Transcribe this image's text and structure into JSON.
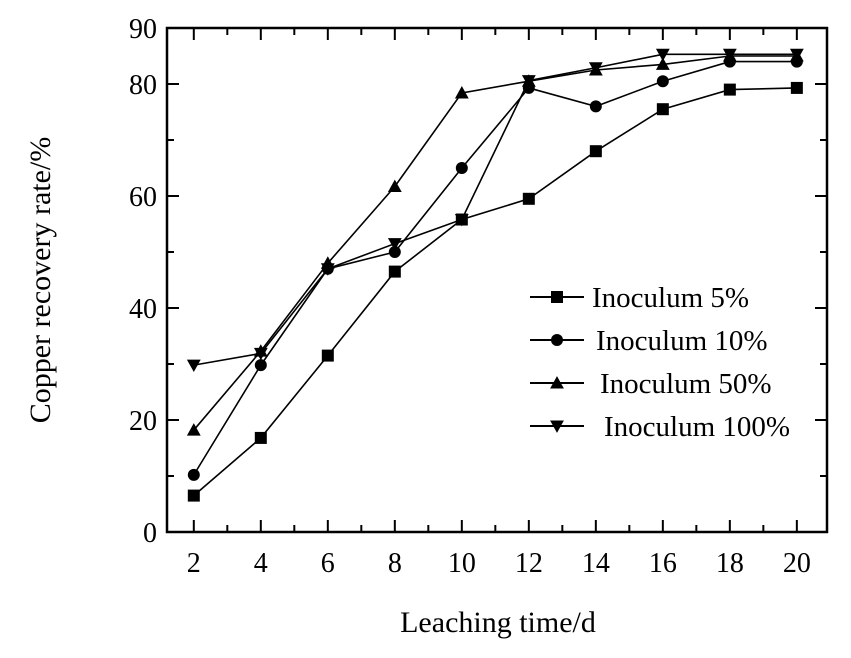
{
  "chart_data": {
    "type": "line",
    "title": "",
    "xlabel": "Leaching time/d",
    "ylabel": "Copper recovery rate/%",
    "xlim": [
      1.2,
      20.9
    ],
    "ylim": [
      0,
      90
    ],
    "x_ticks": [
      2,
      4,
      6,
      8,
      10,
      12,
      14,
      16,
      18,
      20
    ],
    "y_ticks": [
      0,
      20,
      40,
      60,
      80,
      90
    ],
    "y_minor_ticks": [
      10,
      30,
      50,
      70
    ],
    "grid": false,
    "legend_position": "center-right",
    "x": [
      2,
      4,
      6,
      8,
      10,
      12,
      14,
      16,
      18,
      20
    ],
    "series": [
      {
        "name": "Inoculum 5%",
        "marker": "square",
        "values": [
          6.5,
          16.8,
          31.5,
          46.5,
          55.8,
          59.5,
          68,
          75.5,
          79,
          79.3
        ]
      },
      {
        "name": "Inoculum 10%",
        "marker": "circle",
        "values": [
          10.2,
          29.8,
          47,
          50,
          65,
          79.3,
          76,
          80.5,
          84,
          84
        ]
      },
      {
        "name": "Inoculum 50%",
        "marker": "triangle-up",
        "values": [
          18.2,
          32.3,
          48,
          61.7,
          78.4,
          80.5,
          82.5,
          83.5,
          85,
          85
        ]
      },
      {
        "name": "Inoculum 100%",
        "marker": "triangle-down",
        "values": [
          29.8,
          31.9,
          47,
          51.5,
          55.8,
          80.6,
          82.9,
          85.3,
          85.3,
          85.3
        ]
      }
    ]
  }
}
